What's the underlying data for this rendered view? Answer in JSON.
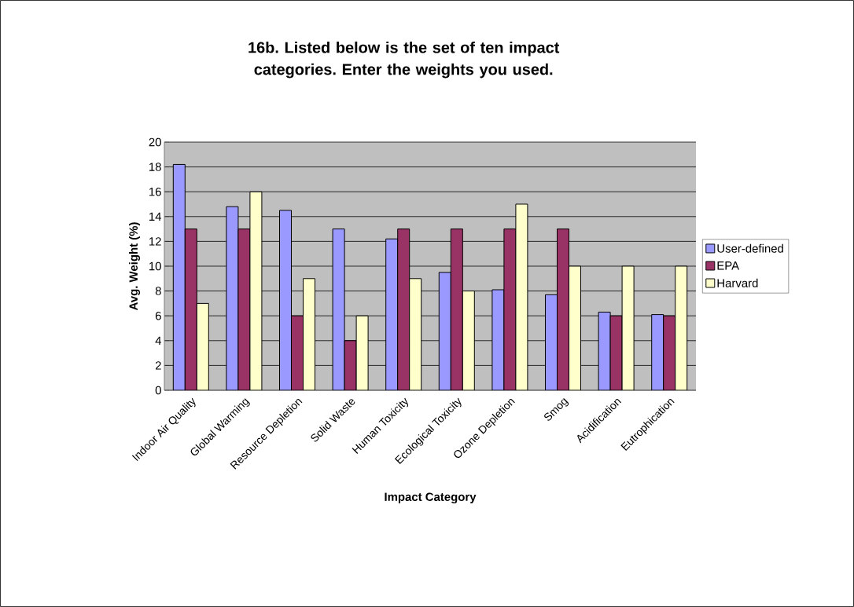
{
  "chart_data": {
    "type": "bar",
    "title": "16b. Listed below is the set of ten impact categories. Enter the weights you used.",
    "xlabel": "Impact Category",
    "ylabel": "Avg. Weight (%)",
    "categories": [
      "Indoor Air Quality",
      "Global Warming",
      "Resource Depletion",
      "Solid Waste",
      "Human Toxicity",
      "Ecological Toxicity",
      "Ozone Depletion",
      "Smog",
      "Acidification",
      "Eutrophication"
    ],
    "series": [
      {
        "name": "User-defined",
        "color": "#9999ff",
        "values": [
          18.2,
          14.8,
          14.5,
          13,
          12.2,
          9.5,
          8.1,
          7.7,
          6.3,
          6.1
        ]
      },
      {
        "name": "EPA",
        "color": "#993366",
        "values": [
          13,
          13,
          6,
          4,
          13,
          13,
          13,
          13,
          6,
          6
        ]
      },
      {
        "name": "Harvard",
        "color": "#ffffcc",
        "values": [
          7,
          16,
          9,
          6,
          9,
          8,
          15,
          10,
          10,
          10
        ]
      }
    ],
    "ylim": [
      0,
      20
    ],
    "yticks": [
      0,
      2,
      4,
      6,
      8,
      10,
      12,
      14,
      16,
      18,
      20
    ],
    "grid": "y",
    "legend": "right"
  }
}
